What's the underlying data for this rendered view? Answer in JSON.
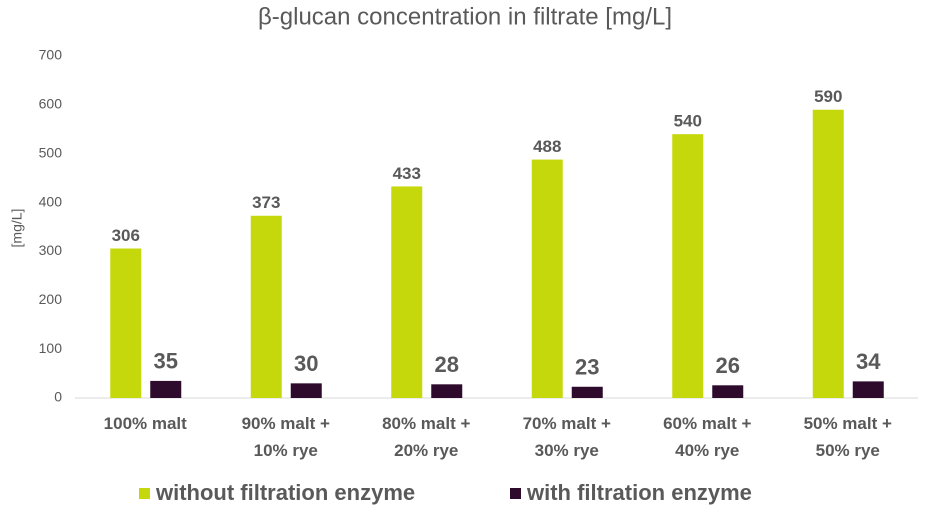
{
  "chart_data": {
    "type": "bar",
    "title": "β-glucan concentration in filtrate [mg/L]",
    "y_label": "[mg/L]",
    "categories": [
      [
        "100%  malt"
      ],
      [
        "90%  malt +",
        "10%  rye"
      ],
      [
        "80%  malt +",
        "20%  rye"
      ],
      [
        "70%  malt +",
        "30%  rye"
      ],
      [
        "60%  malt +",
        "40%  rye"
      ],
      [
        "50%  malt +",
        "50%  rye"
      ]
    ],
    "series": [
      {
        "name": "without filtration enzyme",
        "color": "#c5d80c",
        "values": [
          306,
          373,
          433,
          488,
          540,
          590
        ]
      },
      {
        "name": "with filtration enzyme",
        "color": "#2e0a2c",
        "values": [
          35,
          30,
          28,
          23,
          26,
          34
        ]
      }
    ],
    "ylim": [
      0,
      700
    ],
    "yticks": [
      0,
      100,
      200,
      300,
      400,
      500,
      600,
      700
    ],
    "grid": false,
    "legend": "bottom"
  }
}
